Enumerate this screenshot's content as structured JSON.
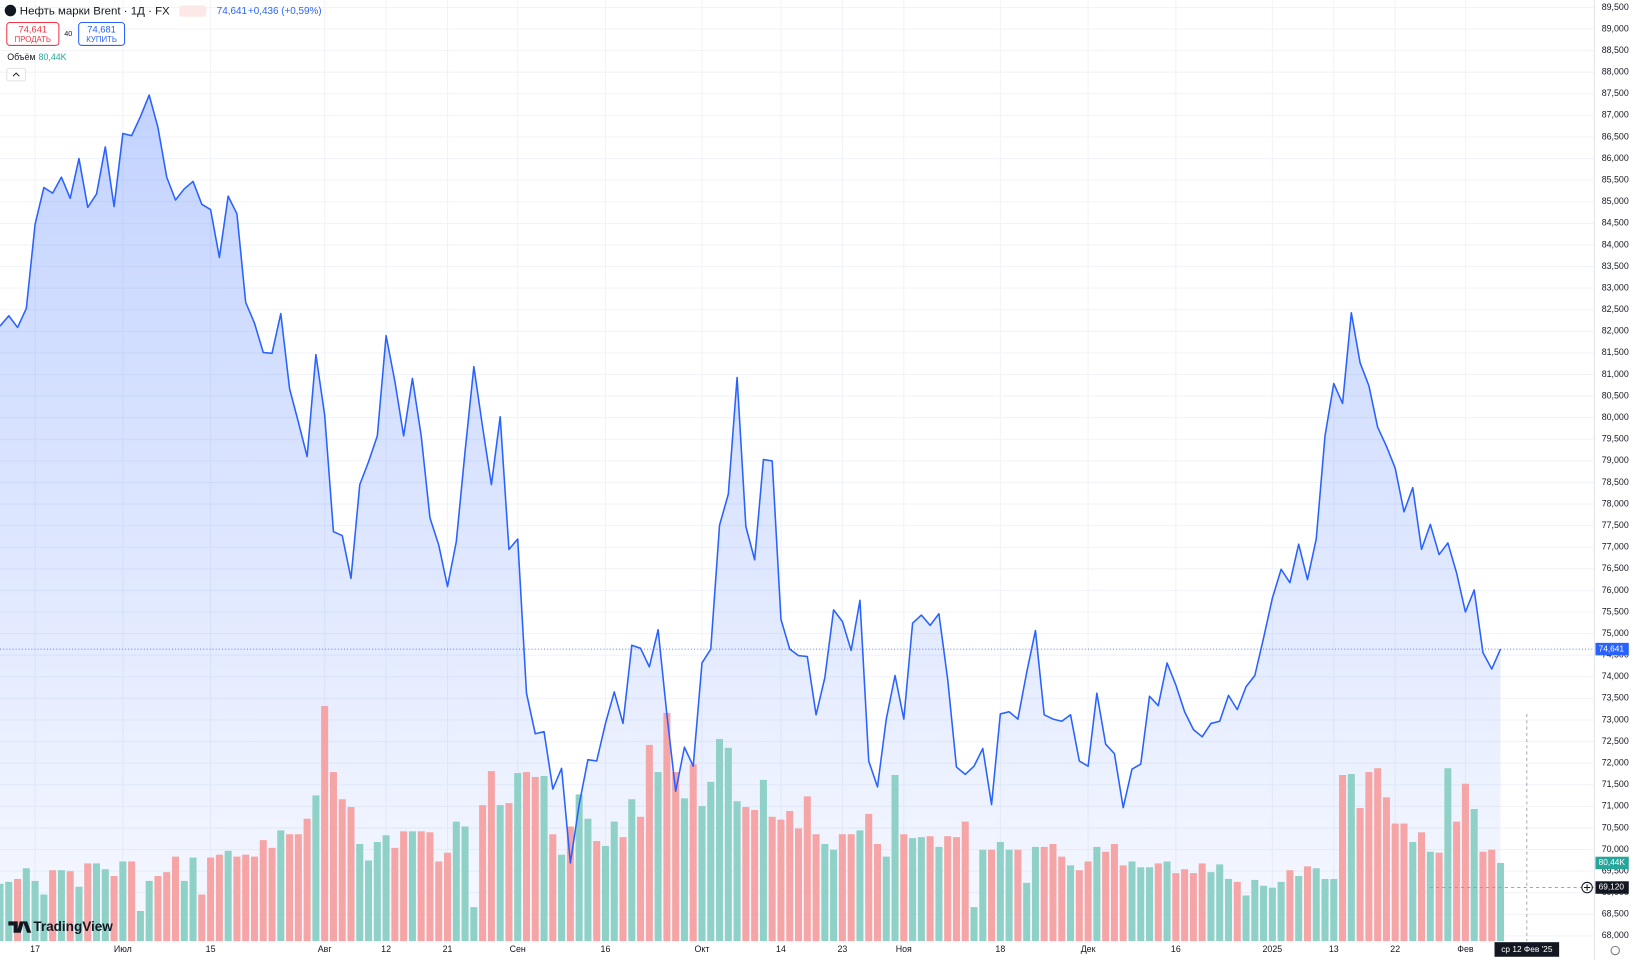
{
  "header": {
    "symbol": "Нефть марки Brent · 1Д · FX",
    "price": "74,641",
    "change": "+0,436 (+0,59%)",
    "sell_price": "74,641",
    "sell_label": "ПРОДАТЬ",
    "spread": "40",
    "buy_price": "74,681",
    "buy_label": "КУПИТЬ",
    "volume_label": "Объём",
    "volume_value": "80,44K"
  },
  "logo": "TradingView",
  "chart_data": {
    "type": "line",
    "color": "#2962ff",
    "values": [
      82.12,
      82.36,
      82.09,
      82.53,
      84.48,
      85.33,
      85.2,
      85.57,
      85.08,
      86.0,
      84.87,
      85.18,
      86.27,
      84.89,
      86.58,
      86.53,
      86.97,
      87.47,
      86.72,
      85.57,
      85.04,
      85.3,
      85.47,
      84.94,
      84.82,
      83.71,
      85.13,
      84.72,
      82.67,
      82.19,
      81.51,
      81.49,
      82.41,
      80.67,
      79.9,
      79.1,
      81.46,
      80.06,
      77.36,
      77.27,
      76.28,
      78.45,
      78.98,
      79.58,
      81.9,
      80.84,
      79.58,
      80.91,
      79.58,
      77.68,
      77.05,
      76.09,
      77.13,
      79.22,
      81.18,
      79.78,
      78.45,
      80.02,
      76.95,
      77.19,
      73.62,
      72.68,
      72.73,
      71.4,
      71.88,
      69.69,
      71.04,
      72.08,
      72.05,
      72.92,
      73.65,
      72.92,
      74.73,
      74.66,
      74.23,
      75.09,
      73.12,
      71.35,
      72.37,
      71.93,
      74.32,
      74.64,
      77.51,
      78.23,
      80.93,
      77.48,
      76.71,
      79.03,
      79.0,
      75.33,
      74.64,
      74.49,
      74.47,
      73.12,
      73.98,
      75.55,
      75.28,
      74.61,
      75.77,
      72.05,
      71.45,
      73.02,
      74.03,
      73.02,
      75.24,
      75.43,
      75.19,
      75.46,
      73.94,
      71.91,
      71.74,
      71.93,
      72.34,
      71.04,
      73.14,
      73.19,
      73.02,
      74.1,
      75.07,
      73.12,
      73.02,
      72.97,
      73.12,
      72.05,
      71.93,
      73.62,
      72.44,
      72.22,
      70.97,
      71.86,
      71.98,
      73.55,
      73.33,
      74.32,
      73.81,
      73.19,
      72.78,
      72.61,
      72.92,
      72.97,
      73.57,
      73.24,
      73.77,
      74.03,
      74.9,
      75.82,
      76.49,
      76.18,
      77.07,
      76.25,
      77.19,
      79.58,
      80.79,
      80.33,
      82.43,
      81.27,
      80.74,
      79.78,
      79.34,
      78.83,
      77.82,
      78.38,
      76.95,
      77.53,
      76.83,
      77.1,
      76.4,
      75.5,
      76.01,
      74.56,
      74.18,
      74.641
    ],
    "volume_values": [
      59,
      61,
      64,
      75,
      62,
      48,
      73,
      73,
      72,
      56,
      80,
      80,
      74,
      67,
      82,
      82,
      31,
      62,
      67,
      71,
      87,
      62,
      86,
      48,
      86,
      89,
      93,
      87,
      89,
      87,
      104,
      96,
      114,
      110,
      110,
      126,
      150,
      242,
      174,
      146,
      138,
      100,
      83,
      102,
      109,
      96,
      113,
      113,
      113,
      112,
      82,
      91,
      123,
      118,
      35,
      140,
      175,
      140,
      142,
      173,
      174,
      169,
      170,
      110,
      89,
      118,
      151,
      126,
      103,
      98,
      123,
      107,
      146,
      128,
      202,
      174,
      235,
      174,
      147,
      182,
      139,
      164,
      208,
      199,
      144,
      138,
      135,
      166,
      128,
      125,
      134,
      116,
      149,
      110,
      100,
      94,
      110,
      110,
      114,
      131,
      100,
      87,
      171,
      110,
      106,
      107,
      108,
      97,
      108,
      107,
      123,
      35,
      94,
      94,
      102,
      94,
      94,
      60,
      97,
      97,
      100,
      87,
      78,
      73,
      82,
      97,
      92,
      100,
      78,
      82,
      76,
      76,
      80,
      82,
      70,
      74,
      70,
      80,
      71,
      79,
      64,
      61,
      47,
      63,
      57,
      55,
      61,
      73,
      67,
      77,
      75,
      64,
      64,
      171,
      172,
      137,
      174,
      178,
      148,
      121,
      121,
      102,
      112,
      92,
      91,
      178,
      123,
      162,
      136,
      92,
      94,
      80.44
    ],
    "volume_value_labels_last": "80,44K",
    "volume_up_color": "#8fd1c6",
    "volume_down_color": "#f5a5a5",
    "volume_lim": [
      0,
      968.6
    ],
    "xlim": [
      0,
      181.7
    ],
    "xticks": [
      {
        "value": 4,
        "label": "17"
      },
      {
        "value": 14,
        "label": "Июл"
      },
      {
        "value": 24,
        "label": "15"
      },
      {
        "value": 37,
        "label": "Авг"
      },
      {
        "value": 44,
        "label": "12"
      },
      {
        "value": 51,
        "label": "21"
      },
      {
        "value": 59,
        "label": "Сен"
      },
      {
        "value": 69,
        "label": "16"
      },
      {
        "value": 80,
        "label": "Окт"
      },
      {
        "value": 89,
        "label": "14"
      },
      {
        "value": 96,
        "label": "23"
      },
      {
        "value": 103,
        "label": "Ноя"
      },
      {
        "value": 114,
        "label": "18"
      },
      {
        "value": 124,
        "label": "Дек"
      },
      {
        "value": 134,
        "label": "16"
      },
      {
        "value": 145,
        "label": "2025"
      },
      {
        "value": 152,
        "label": "13"
      },
      {
        "value": 159,
        "label": "22"
      },
      {
        "value": 167,
        "label": "Фев"
      }
    ],
    "ylim": [
      67.879,
      89.669
    ],
    "yticks": [
      {
        "value": 68,
        "label": "68,000"
      },
      {
        "value": 68.5,
        "label": "68,500"
      },
      {
        "value": 69,
        "label": "69,000"
      },
      {
        "value": 69.5,
        "label": "69,500"
      },
      {
        "value": 70,
        "label": "70,000"
      },
      {
        "value": 70.5,
        "label": "70,500"
      },
      {
        "value": 71,
        "label": "71,000"
      },
      {
        "value": 71.5,
        "label": "71,500"
      },
      {
        "value": 72,
        "label": "72,000"
      },
      {
        "value": 72.5,
        "label": "72,500"
      },
      {
        "value": 73,
        "label": "73,000"
      },
      {
        "value": 73.5,
        "label": "73,500"
      },
      {
        "value": 74,
        "label": "74,000"
      },
      {
        "value": 74.5,
        "label": "74,500"
      },
      {
        "value": 75,
        "label": "75,000"
      },
      {
        "value": 75.5,
        "label": "75,500"
      },
      {
        "value": 76,
        "label": "76,000"
      },
      {
        "value": 76.5,
        "label": "76,500"
      },
      {
        "value": 77,
        "label": "77,000"
      },
      {
        "value": 77.5,
        "label": "77,500"
      },
      {
        "value": 78,
        "label": "78,000"
      },
      {
        "value": 78.5,
        "label": "78,500"
      },
      {
        "value": 79,
        "label": "79,000"
      },
      {
        "value": 79.5,
        "label": "79,500"
      },
      {
        "value": 80,
        "label": "80,000"
      },
      {
        "value": 80.5,
        "label": "80,500"
      },
      {
        "value": 81,
        "label": "81,000"
      },
      {
        "value": 81.5,
        "label": "81,500"
      },
      {
        "value": 82,
        "label": "82,000"
      },
      {
        "value": 82.5,
        "label": "82,500"
      },
      {
        "value": 83,
        "label": "83,000"
      },
      {
        "value": 83.5,
        "label": "83,500"
      },
      {
        "value": 84,
        "label": "84,000"
      },
      {
        "value": 84.5,
        "label": "84,500"
      },
      {
        "value": 85,
        "label": "85,000"
      },
      {
        "value": 85.5,
        "label": "85,500"
      },
      {
        "value": 86,
        "label": "86,000"
      },
      {
        "value": 86.5,
        "label": "86,500"
      },
      {
        "value": 87,
        "label": "87,000"
      },
      {
        "value": 87.5,
        "label": "87,500"
      },
      {
        "value": 88,
        "label": "88,000"
      },
      {
        "value": 88.5,
        "label": "88,500"
      },
      {
        "value": 89,
        "label": "89,000"
      },
      {
        "value": 89.5,
        "label": "89,500"
      }
    ],
    "grid": true,
    "last_price": {
      "value": 74.641,
      "label": "74,641"
    },
    "crosshair": {
      "x": 174,
      "value": 69.12,
      "label": "69,120",
      "date": "ср 12 Фев '25"
    }
  }
}
